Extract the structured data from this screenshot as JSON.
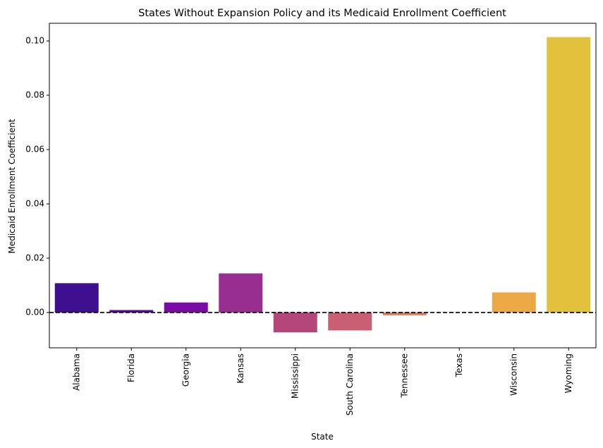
{
  "chart_data": {
    "type": "bar",
    "title": "States Without Expansion Policy and its Medicaid Enrollment Coefficient",
    "xlabel": "State",
    "ylabel": "Medicaid Enrollment Coefficient",
    "categories": [
      "Alabama",
      "Florida",
      "Georgia",
      "Kansas",
      "Mississippi",
      "South Carolina",
      "Tennessee",
      "Texas",
      "Wisconsin",
      "Wyoming"
    ],
    "values": [
      0.0108,
      0.0009,
      0.0037,
      0.0144,
      -0.0073,
      -0.0066,
      -0.001,
      0.0,
      0.0074,
      0.1014
    ],
    "colors": [
      "#3e0f8f",
      "#5c00a3",
      "#7a0ca5",
      "#982f90",
      "#b4467b",
      "#c95f72",
      "#dd785c",
      "#f0904a",
      "#eda846",
      "#e2c13d"
    ],
    "yticks": [
      "0.00",
      "0.02",
      "0.04",
      "0.06",
      "0.08",
      "0.10"
    ],
    "ytick_values": [
      0.0,
      0.02,
      0.04,
      0.06,
      0.08,
      0.1
    ],
    "ylim": [
      -0.013,
      0.1065
    ],
    "reference_line": {
      "y": 0.0,
      "style": "dashed",
      "color": "#000000"
    },
    "grid": false,
    "legend": "none"
  }
}
